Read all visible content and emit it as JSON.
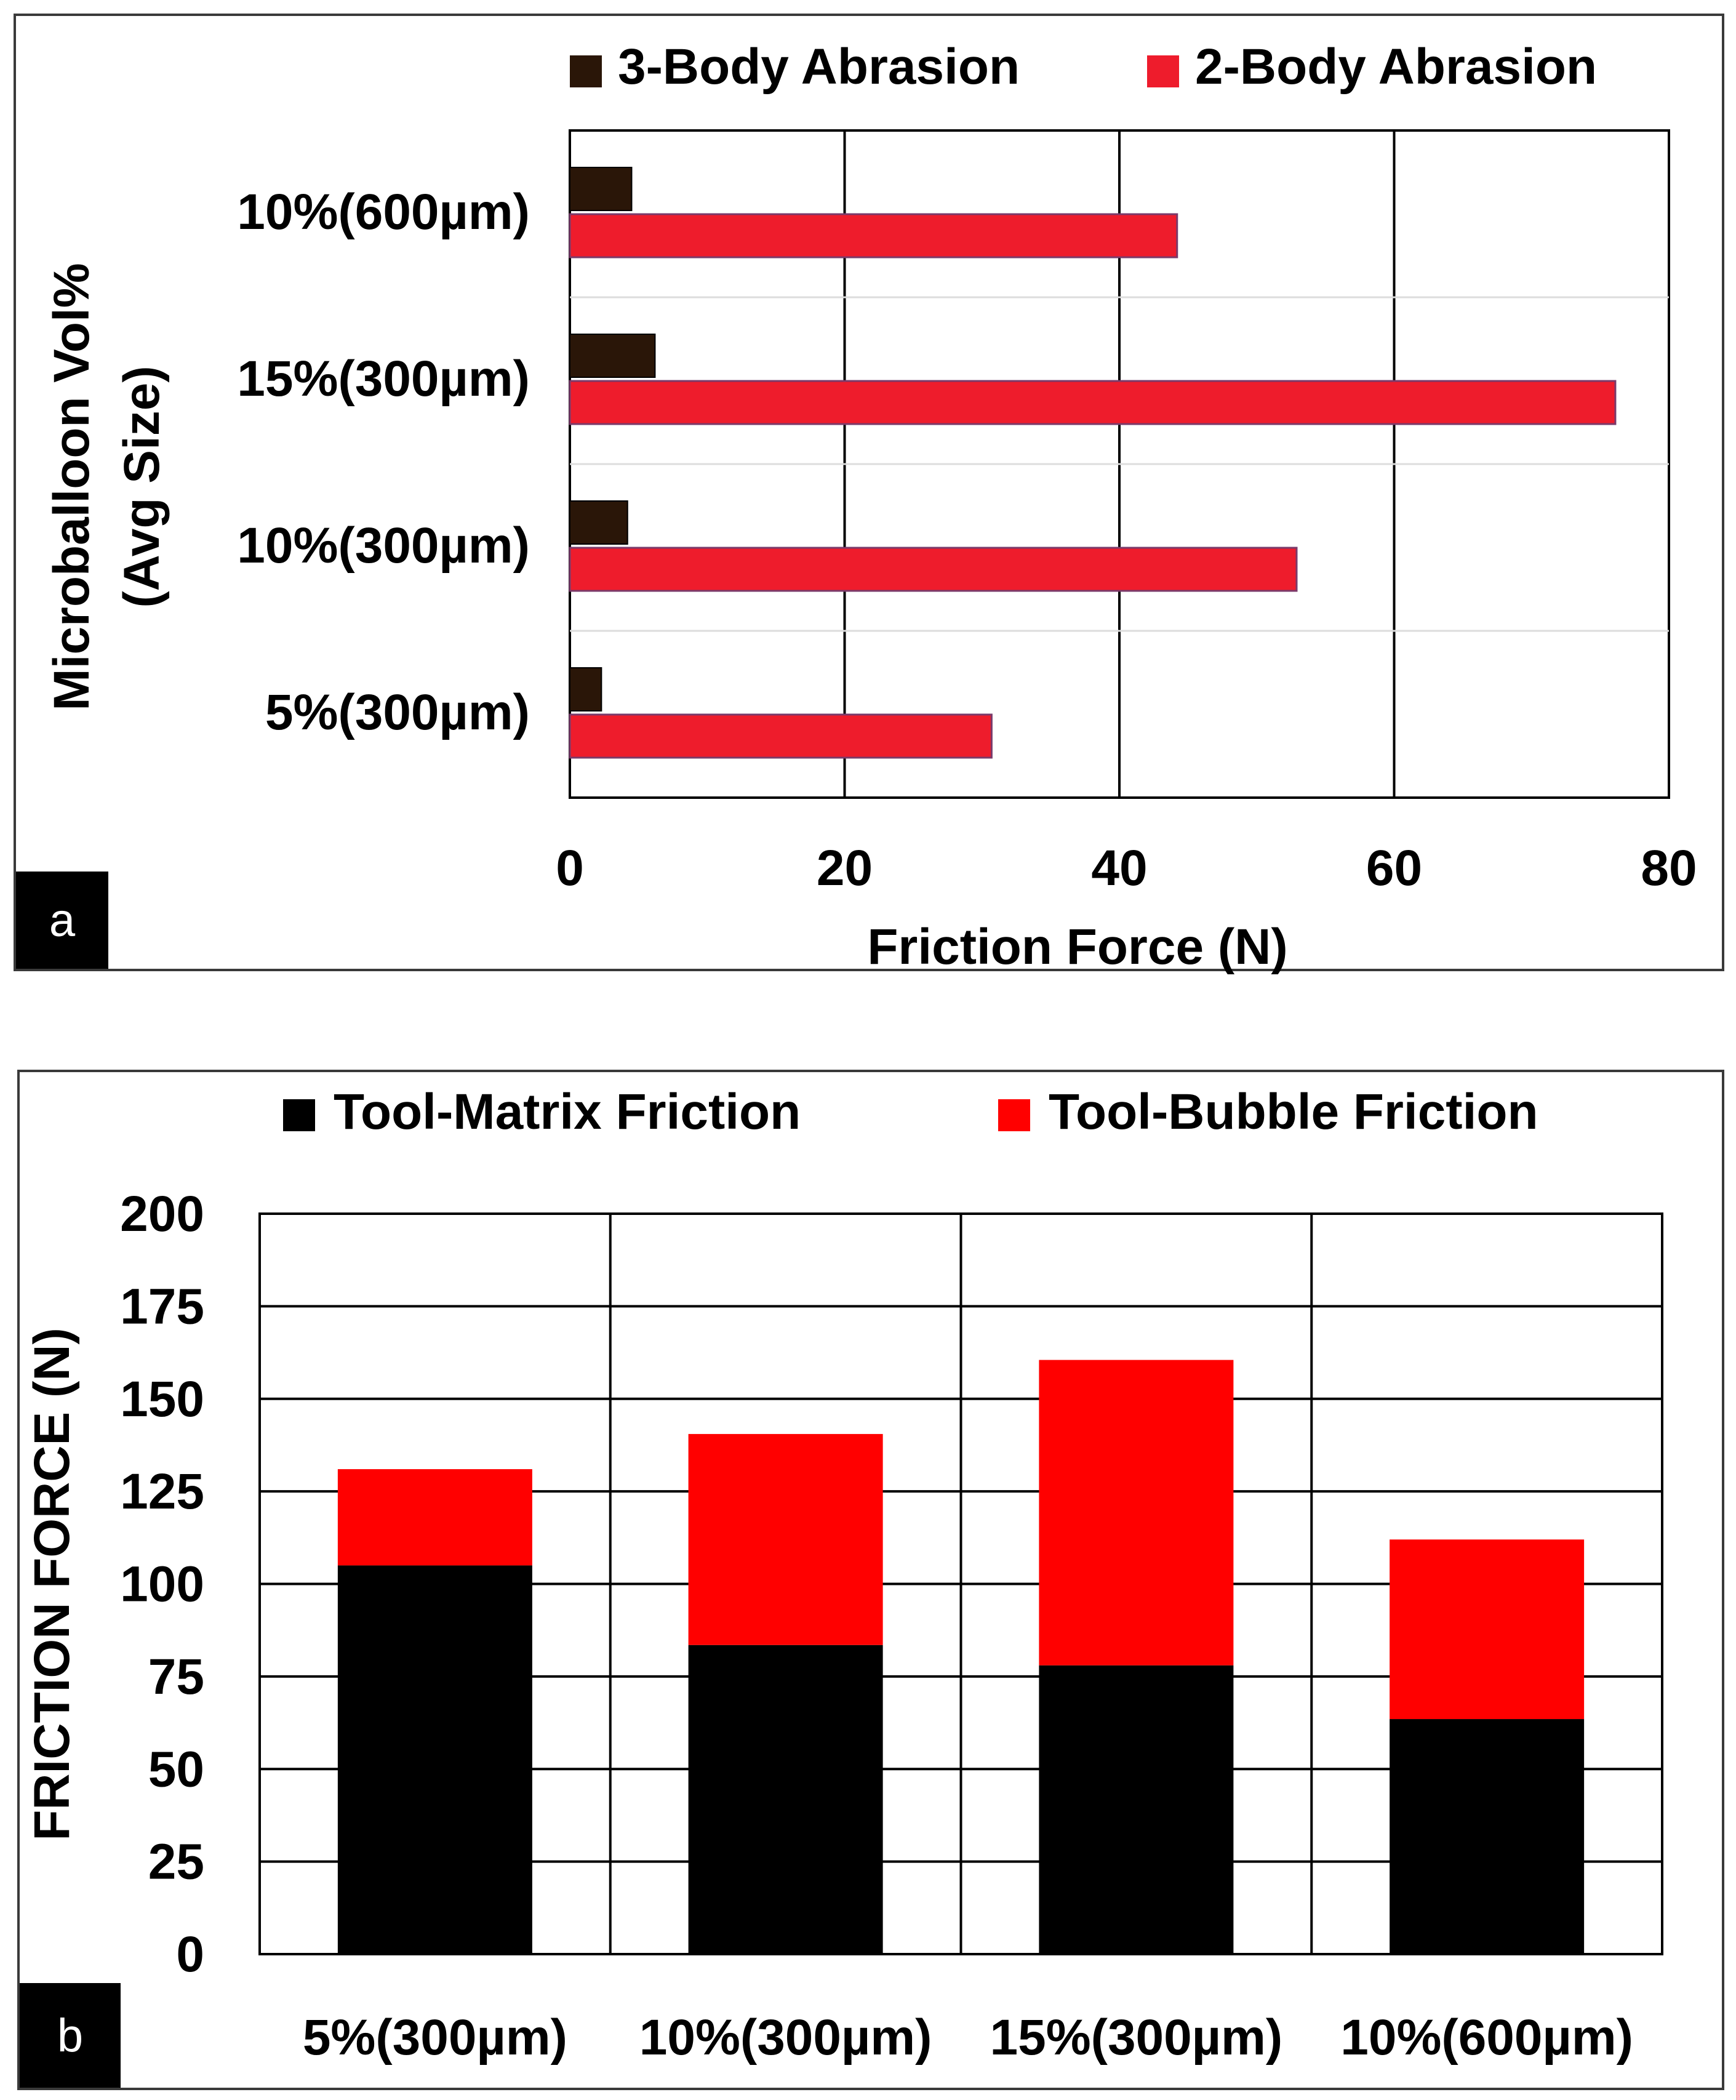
{
  "panels": {
    "a": {
      "letter": "a"
    },
    "b": {
      "letter": "b"
    }
  },
  "colors": {
    "three_body": "#2a1608",
    "two_body": "#ee1c2c",
    "tool_matrix": "#000000",
    "tool_bubble": "#ff0000",
    "grid": "#000000",
    "category_separator": "#dddddd"
  },
  "chart_data": [
    {
      "type": "bar",
      "orientation": "horizontal",
      "categories": [
        "10%(600µm)",
        "15%(300µm)",
        "10%(300µm)",
        "5%(300µm)"
      ],
      "series": [
        {
          "name": "3-Body Abrasion",
          "values": [
            4.5,
            6.2,
            4.2,
            2.3
          ]
        },
        {
          "name": "2-Body Abrasion",
          "values": [
            44.2,
            76.1,
            52.9,
            30.7
          ]
        }
      ],
      "xlabel": "Friction Force (N)",
      "ylabel": "Microballoon Vol% (Avg Size)",
      "ylabel_lines": [
        "Microballoon Vol%",
        "(Avg Size)"
      ],
      "xlim": [
        0,
        80
      ],
      "xticks": [
        "0",
        "20",
        "40",
        "60",
        "80"
      ],
      "grid": "vertical",
      "legend": "top"
    },
    {
      "type": "bar",
      "orientation": "vertical",
      "stacked": true,
      "categories": [
        "5%(300µm)",
        "10%(300µm)",
        "15%(300µm)",
        "10%(600µm)"
      ],
      "series": [
        {
          "name": "Tool-Matrix Friction",
          "values": [
            105,
            83.5,
            78,
            63.5
          ]
        },
        {
          "name": "Tool-Bubble Friction",
          "values": [
            26,
            57,
            82.5,
            48.5
          ]
        }
      ],
      "ylabel": "FRICTION FORCE (N)",
      "ylim": [
        0,
        200
      ],
      "yticks": [
        "200",
        "175",
        "150",
        "125",
        "100",
        "75",
        "50",
        "25",
        "0"
      ],
      "grid": "both",
      "legend": "top"
    }
  ]
}
